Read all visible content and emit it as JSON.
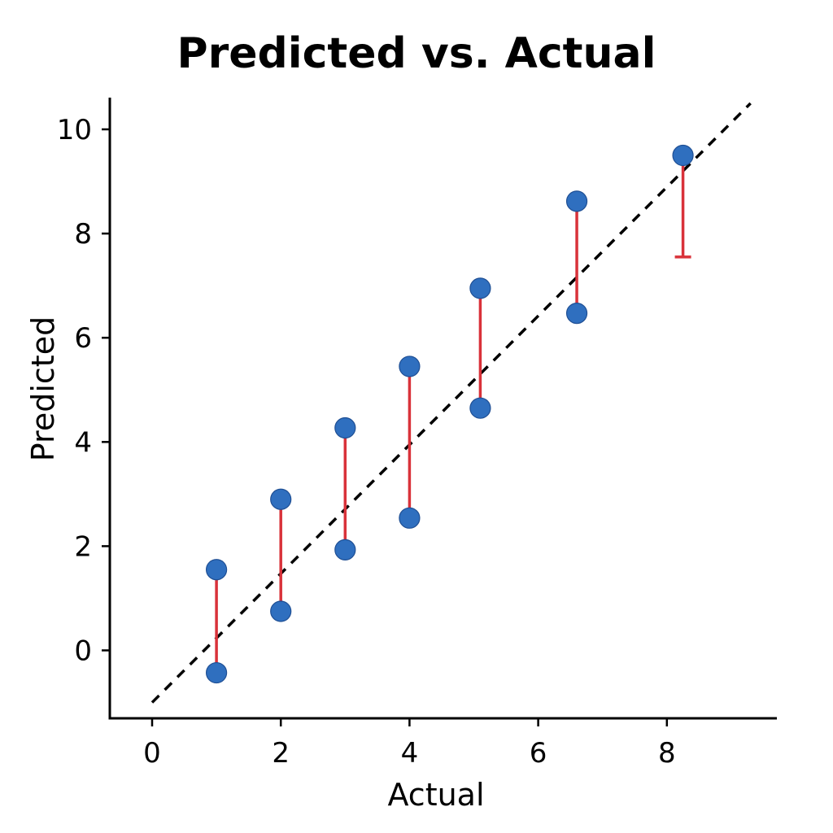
{
  "chart_data": {
    "type": "scatter",
    "title": "Predicted vs. Actual",
    "xlabel": "Actual",
    "ylabel": "Predicted",
    "xlim": [
      -0.7,
      9.6
    ],
    "ylim": [
      -1.3,
      10.6
    ],
    "xticks": [
      0,
      2,
      4,
      6,
      8
    ],
    "yticks": [
      0,
      2,
      4,
      6,
      8,
      10
    ],
    "grid": false,
    "reference_line": {
      "style": "dashed",
      "color": "#000000",
      "from": [
        0,
        -1
      ],
      "to": [
        9.3,
        10.5
      ]
    },
    "colors": {
      "points": "#2f6fbf",
      "error_bars": "#d9323a",
      "axes": "#000000"
    },
    "points": [
      {
        "x": 1.0,
        "y": 1.55
      },
      {
        "x": 1.0,
        "y": -0.43
      },
      {
        "x": 2.0,
        "y": 2.9
      },
      {
        "x": 2.0,
        "y": 0.75
      },
      {
        "x": 3.0,
        "y": 4.27
      },
      {
        "x": 3.0,
        "y": 1.93
      },
      {
        "x": 4.0,
        "y": 5.45
      },
      {
        "x": 4.0,
        "y": 2.54
      },
      {
        "x": 5.1,
        "y": 6.95
      },
      {
        "x": 5.1,
        "y": 4.65
      },
      {
        "x": 6.6,
        "y": 8.62
      },
      {
        "x": 6.6,
        "y": 6.47
      },
      {
        "x": 8.25,
        "y": 9.5
      }
    ],
    "error_bars": [
      {
        "x": 1.0,
        "y_low": -0.43,
        "y_high": 1.55,
        "cap": false
      },
      {
        "x": 2.0,
        "y_low": 0.75,
        "y_high": 2.9,
        "cap": false
      },
      {
        "x": 3.0,
        "y_low": 1.93,
        "y_high": 4.27,
        "cap": false
      },
      {
        "x": 4.0,
        "y_low": 2.54,
        "y_high": 5.45,
        "cap": false
      },
      {
        "x": 5.1,
        "y_low": 4.65,
        "y_high": 6.95,
        "cap": false
      },
      {
        "x": 6.6,
        "y_low": 6.47,
        "y_high": 8.62,
        "cap": false
      },
      {
        "x": 8.25,
        "y_low": 7.55,
        "y_high": 9.5,
        "cap": true
      }
    ]
  }
}
